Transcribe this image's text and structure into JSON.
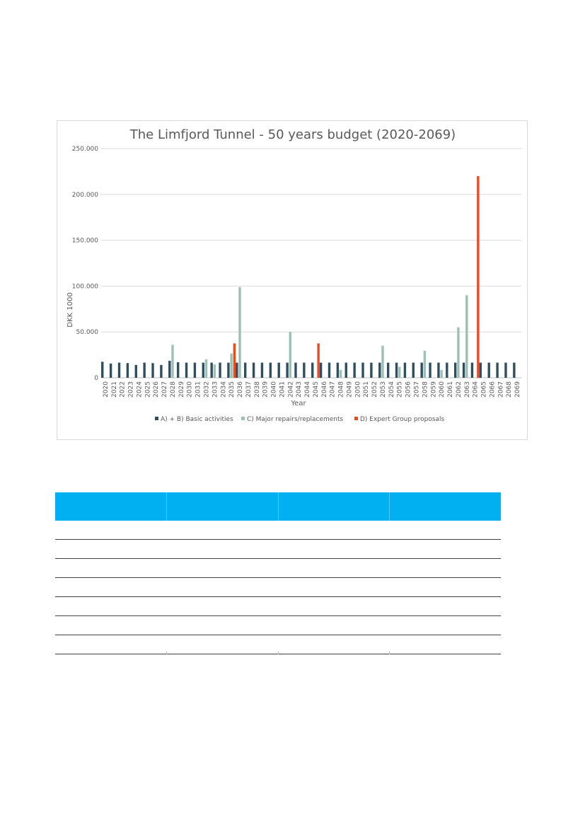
{
  "chart_data": {
    "type": "bar",
    "title": "The Limfjord Tunnel - 50 years budget (2020-2069)",
    "xlabel": "Year",
    "ylabel": "DKK 1000",
    "ylim": [
      0,
      250000
    ],
    "yticks": [
      "0",
      "50.000",
      "100.000",
      "150.000",
      "200.000",
      "250.000"
    ],
    "ytick_values": [
      0,
      50000,
      100000,
      150000,
      200000,
      250000
    ],
    "grid": "horizontal",
    "legend_position": "bottom",
    "categories": [
      "2020",
      "2021",
      "2022",
      "2023",
      "2024",
      "2025",
      "2026",
      "2027",
      "2028",
      "2029",
      "2030",
      "2031",
      "2032",
      "2033",
      "2034",
      "2035",
      "2036",
      "2037",
      "2038",
      "2039",
      "2040",
      "2041",
      "2042",
      "2043",
      "2044",
      "2045",
      "2046",
      "2047",
      "2048",
      "2049",
      "2050",
      "2051",
      "2052",
      "2053",
      "2054",
      "2055",
      "2056",
      "2057",
      "2058",
      "2059",
      "2060",
      "2061",
      "2062",
      "2063",
      "2064",
      "2065",
      "2066",
      "2067",
      "2068",
      "2069"
    ],
    "series": [
      {
        "name": "A) + B) Basic activities",
        "color": "#2f4f5f",
        "values": [
          17500,
          15500,
          16500,
          16000,
          14000,
          16500,
          16000,
          14000,
          18500,
          17000,
          16500,
          16500,
          16500,
          16500,
          16500,
          16500,
          16500,
          16500,
          16500,
          16500,
          16500,
          16500,
          16500,
          16500,
          16500,
          16500,
          16500,
          16500,
          16500,
          16500,
          16500,
          16500,
          16500,
          16500,
          16500,
          16500,
          16500,
          16500,
          16500,
          16500,
          16500,
          16500,
          16500,
          16500,
          16500,
          16500,
          16500,
          16500,
          16500,
          16500
        ]
      },
      {
        "name": "C) Major repairs/replacements",
        "color": "#9dbfb6",
        "values": [
          0,
          0,
          0,
          0,
          0,
          0,
          0,
          0,
          36000,
          0,
          0,
          0,
          20000,
          14500,
          0,
          26500,
          99000,
          0,
          0,
          0,
          0,
          0,
          50000,
          0,
          0,
          0,
          0,
          0,
          8500,
          0,
          0,
          0,
          0,
          35000,
          0,
          12000,
          0,
          0,
          29500,
          0,
          8500,
          0,
          55000,
          90000,
          0,
          0,
          0,
          0,
          0,
          0
        ]
      },
      {
        "name": "D) Expert Group proposals",
        "color": "#e84c22",
        "values": [
          0,
          0,
          0,
          0,
          0,
          0,
          0,
          0,
          0,
          0,
          0,
          0,
          0,
          0,
          0,
          37500,
          0,
          0,
          0,
          0,
          0,
          0,
          0,
          0,
          0,
          37500,
          0,
          0,
          0,
          0,
          0,
          0,
          0,
          0,
          0,
          0,
          0,
          0,
          0,
          0,
          0,
          0,
          0,
          0,
          220000,
          0,
          0,
          0,
          0,
          0
        ]
      }
    ]
  },
  "table": {
    "header_color": "#00b0f0",
    "columns": 4,
    "rows": 7
  }
}
